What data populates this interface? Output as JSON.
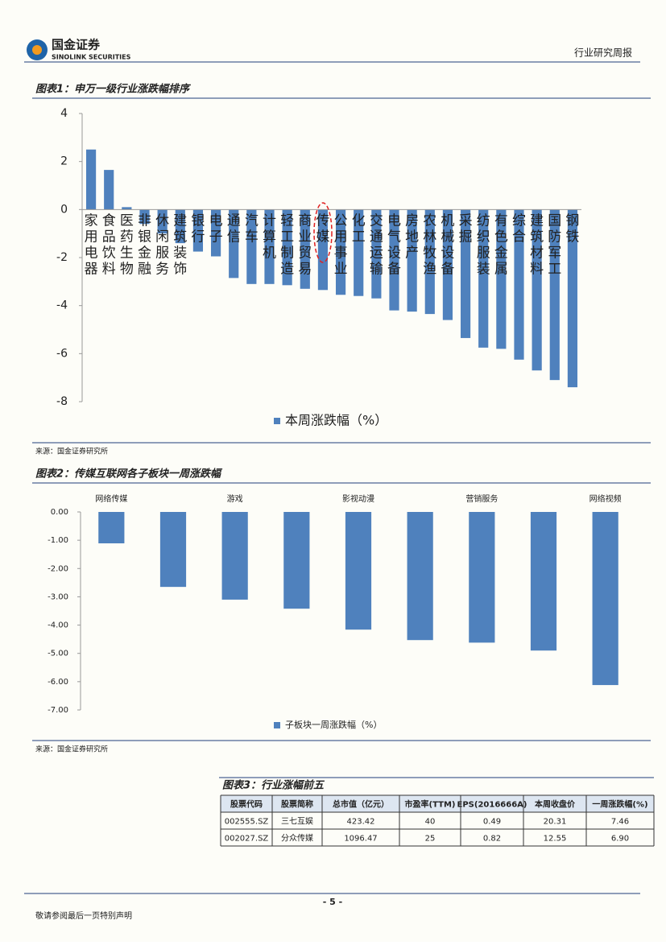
{
  "header": {
    "logo_cn": "国金证券",
    "logo_en": "SINOLINK SECURITIES",
    "report_type": "行业研究周报"
  },
  "figure1": {
    "title": "图表1：申万一级行业涨跌幅排序",
    "source": "来源：国金证券研究所"
  },
  "figure2": {
    "title": "图表2：传媒互联网各子板块一周涨跌幅",
    "source": "来源：国金证券研究所"
  },
  "chart_data": [
    {
      "type": "bar",
      "categories": [
        "家用电器",
        "食品饮料",
        "医药生物",
        "非银金融",
        "休闲服务",
        "建筑装饰",
        "银行",
        "电子",
        "通信",
        "汽车",
        "计算机",
        "轻工制造",
        "商业贸易",
        "传媒",
        "公用事业",
        "化工",
        "交通运输",
        "电气设备",
        "房地产",
        "农林牧渔",
        "机械设备",
        "采掘",
        "纺织服装",
        "有色金属",
        "综合",
        "建筑材料",
        "国防军工",
        "钢铁"
      ],
      "series": [
        {
          "name": "本周涨跌幅（%）",
          "color": "#4f81bd",
          "values": [
            2.5,
            1.65,
            0.1,
            -0.6,
            -1.0,
            -1.4,
            -1.75,
            -1.95,
            -2.85,
            -3.1,
            -3.1,
            -3.15,
            -3.3,
            -3.35,
            -3.55,
            -3.6,
            -3.7,
            -4.2,
            -4.25,
            -4.35,
            -4.6,
            -5.35,
            -5.75,
            -5.8,
            -6.25,
            -6.7,
            -7.1,
            -7.4
          ]
        }
      ],
      "ylim": [
        -8,
        4
      ],
      "yticks": [
        -8,
        -6,
        -4,
        -2,
        0,
        2,
        4
      ],
      "legend": "bottom"
    },
    {
      "type": "bar",
      "categories": [
        "网络传媒",
        null,
        "游戏",
        null,
        "影视动漫",
        null,
        "营销服务",
        null,
        "网络视频"
      ],
      "series": [
        {
          "name": "子板块一周涨跌幅（%）",
          "color": "#4f81bd",
          "values": [
            -1.11,
            -2.65,
            -3.1,
            -3.42,
            -4.16,
            -4.53,
            -4.62,
            -4.9,
            -6.12
          ]
        }
      ],
      "ylim": [
        -7,
        0
      ],
      "yticks": [
        {
          "value": 0,
          "label": "0.00"
        },
        {
          "value": -1,
          "label": "-1.00"
        },
        {
          "value": -2,
          "label": "-2.00"
        },
        {
          "value": -3,
          "label": "-3.00"
        },
        {
          "value": -4,
          "label": "-4.00"
        },
        {
          "value": -5,
          "label": "-5.00"
        },
        {
          "value": -6,
          "label": "-6.00"
        },
        {
          "value": -7,
          "label": "-7.00"
        }
      ],
      "legend": "bottom"
    }
  ],
  "table": {
    "title": "图表3：行业涨幅前五",
    "columns": [
      "股票代码",
      "股票简称",
      "总市值（亿元）",
      "市盈率(TTM)",
      "EPS(2016666A)",
      "本周收盘价",
      "一周涨跌幅(%)"
    ],
    "rows": [
      [
        "002555.SZ",
        "三七互娱",
        "423.42",
        "40",
        "0.49",
        "20.31",
        "7.46"
      ],
      [
        "002027.SZ",
        "分众传媒",
        "1096.47",
        "25",
        "0.82",
        "12.55",
        "6.90"
      ]
    ]
  },
  "footer": {
    "page": "- 5 -",
    "disclaimer": "敬请参阅最后一页特别声明"
  }
}
